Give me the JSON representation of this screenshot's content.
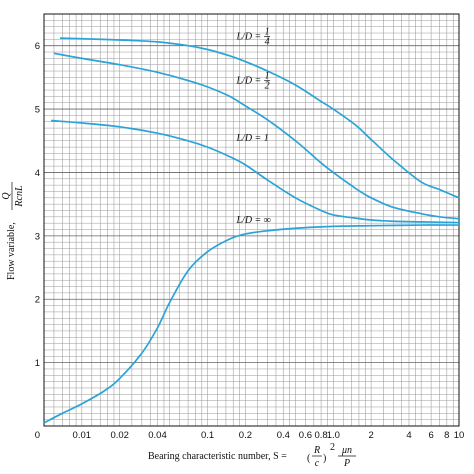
{
  "chart_data": {
    "type": "line",
    "x_scale": "log",
    "xlim": [
      0.005,
      10
    ],
    "ylim": [
      0,
      6.5
    ],
    "grid": true,
    "x_ticks": [
      {
        "v": 0.01,
        "label": "0.01"
      },
      {
        "v": 0.02,
        "label": "0.02"
      },
      {
        "v": 0.04,
        "label": "0.04"
      },
      {
        "v": 0.1,
        "label": "0.1"
      },
      {
        "v": 0.2,
        "label": "0.2"
      },
      {
        "v": 0.4,
        "label": "0.4"
      },
      {
        "v": 0.6,
        "label": "0.6"
      },
      {
        "v": 0.8,
        "label": "0.8"
      },
      {
        "v": 1.0,
        "label": "1.0"
      },
      {
        "v": 2,
        "label": "2"
      },
      {
        "v": 4,
        "label": "4"
      },
      {
        "v": 6,
        "label": "6"
      },
      {
        "v": 8,
        "label": "8"
      },
      {
        "v": 10,
        "label": "10"
      }
    ],
    "y_ticks": [
      {
        "v": 1,
        "label": "1"
      },
      {
        "v": 2,
        "label": "2"
      },
      {
        "v": 3,
        "label": "3"
      },
      {
        "v": 4,
        "label": "4"
      },
      {
        "v": 5,
        "label": "5"
      },
      {
        "v": 6,
        "label": "6"
      }
    ],
    "origin_label": "0",
    "xlabel": {
      "text": "Bearing characteristic number, S = ",
      "r": "R",
      "c": "c",
      "exp": "2",
      "num": "μn",
      "den": "P"
    },
    "ylabel": {
      "text": "Flow variable, ",
      "num": "Q",
      "den": "RcnL"
    },
    "series": [
      {
        "label_ld": "L/D = ",
        "label_num": "1",
        "label_den": "4",
        "label_at": [
          0.17,
          6.1
        ],
        "x": [
          0.0067,
          0.01,
          0.02,
          0.04,
          0.07,
          0.1,
          0.15,
          0.2,
          0.3,
          0.5,
          0.8,
          1,
          1.5,
          2,
          3,
          5,
          7,
          10
        ],
        "y": [
          6.12,
          6.11,
          6.09,
          6.06,
          6.0,
          5.94,
          5.84,
          5.75,
          5.6,
          5.38,
          5.12,
          5.0,
          4.75,
          4.52,
          4.2,
          3.85,
          3.73,
          3.6
        ]
      },
      {
        "label_ld": "L/D = ",
        "label_num": "1",
        "label_den": "2",
        "label_at": [
          0.17,
          5.4
        ],
        "x": [
          0.006,
          0.01,
          0.02,
          0.04,
          0.07,
          0.1,
          0.15,
          0.2,
          0.3,
          0.5,
          0.8,
          1,
          1.5,
          2,
          3,
          5,
          7,
          10
        ],
        "y": [
          5.88,
          5.8,
          5.7,
          5.58,
          5.45,
          5.35,
          5.2,
          5.05,
          4.83,
          4.5,
          4.15,
          4.0,
          3.75,
          3.6,
          3.45,
          3.35,
          3.3,
          3.27
        ]
      },
      {
        "label_ld": "L/D = 1",
        "label_at": [
          0.17,
          4.5
        ],
        "x": [
          0.0057,
          0.01,
          0.02,
          0.04,
          0.07,
          0.1,
          0.15,
          0.2,
          0.3,
          0.5,
          0.8,
          1,
          1.5,
          2,
          3,
          5,
          10
        ],
        "y": [
          4.82,
          4.78,
          4.72,
          4.62,
          4.5,
          4.4,
          4.25,
          4.12,
          3.88,
          3.6,
          3.4,
          3.33,
          3.28,
          3.25,
          3.23,
          3.22,
          3.21
        ]
      },
      {
        "label_ld": "L/D = ∞",
        "label_at": [
          0.17,
          3.2
        ],
        "x": [
          0.005,
          0.007,
          0.01,
          0.015,
          0.02,
          0.03,
          0.04,
          0.05,
          0.07,
          0.1,
          0.15,
          0.2,
          0.3,
          0.5,
          1,
          2,
          5,
          10
        ],
        "y": [
          0.05,
          0.2,
          0.35,
          0.55,
          0.75,
          1.15,
          1.55,
          1.95,
          2.45,
          2.75,
          2.95,
          3.03,
          3.08,
          3.12,
          3.15,
          3.16,
          3.17,
          3.17
        ]
      }
    ],
    "line_color": "#2aa3d8",
    "grid_color": "#9a9a9a"
  }
}
